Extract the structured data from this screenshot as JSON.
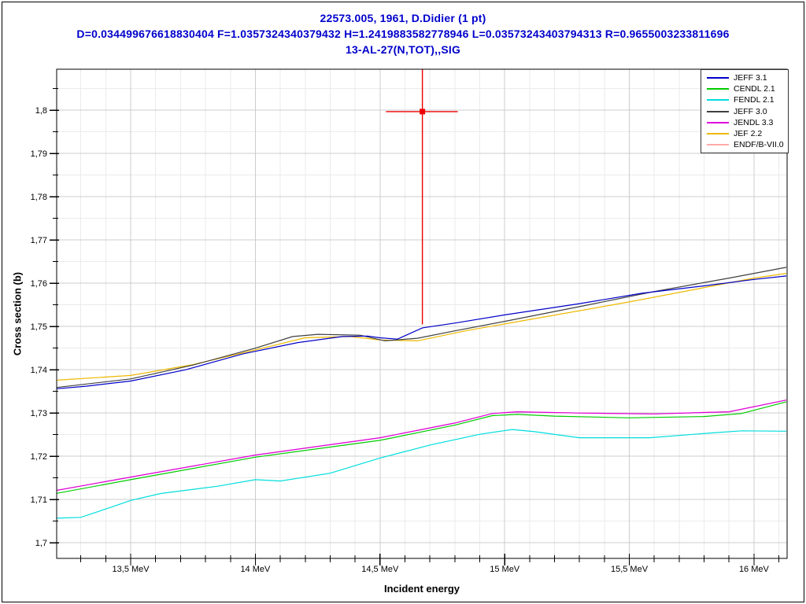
{
  "chart_data": {
    "type": "line",
    "titles": [
      "22573.005, 1961, D.Didier (1 pt)",
      "D=0.034499676618830404 F=1.0357324340379432 H=1.2419883582778946 L=0.03573243403794313 R=0.9655003233811696",
      "13-AL-27(N,TOT),,SIG"
    ],
    "title_color": "#0000cc",
    "xlabel": "Incident energy",
    "ylabel": "Cross section (b)",
    "x_unit": "MeV",
    "xlim": [
      13.203,
      16.133
    ],
    "ylim": [
      1.6964,
      1.8095
    ],
    "x_ticks": [
      {
        "label": "13,5 MeV",
        "value": 13.5
      },
      {
        "label": "14 MeV",
        "value": 14.0
      },
      {
        "label": "14,5 MeV",
        "value": 14.5
      },
      {
        "label": "15 MeV",
        "value": 15.0
      },
      {
        "label": "15,5 MeV",
        "value": 15.5
      },
      {
        "label": "16 MeV",
        "value": 16.0
      }
    ],
    "y_ticks": [
      {
        "label": "1,8",
        "value": 1.8
      },
      {
        "label": "1,79",
        "value": 1.79
      },
      {
        "label": "1,78",
        "value": 1.78
      },
      {
        "label": "1,77",
        "value": 1.77
      },
      {
        "label": "1,76",
        "value": 1.76
      },
      {
        "label": "1,75",
        "value": 1.75
      },
      {
        "label": "1,74",
        "value": 1.74
      },
      {
        "label": "1,73",
        "value": 1.73
      },
      {
        "label": "1,72",
        "value": 1.72
      },
      {
        "label": "1,71",
        "value": 1.71
      },
      {
        "label": "1,7",
        "value": 1.7
      }
    ],
    "x_minor_step": 0.1,
    "y_minor_step": 0.005,
    "grid": {
      "major": "#cccccc",
      "minor": "#ebebeb"
    },
    "axis_color": "#000000",
    "legend": {
      "position": "top-right",
      "entries": [
        "JEFF 3.1",
        "CENDL 2.1",
        "FENDL 2.1",
        "JEFF 3.0",
        "JENDL 3.3",
        "JEF 2.2",
        "ENDF/B-VII.0"
      ]
    },
    "series": [
      {
        "id": "jeff31",
        "name": "JEFF 3.1",
        "color": "#0000c8",
        "points": [
          [
            13.2,
            1.7356
          ],
          [
            13.32,
            1.7362
          ],
          [
            13.5,
            1.7374
          ],
          [
            13.72,
            1.74
          ],
          [
            13.95,
            1.7437
          ],
          [
            14.17,
            1.7463
          ],
          [
            14.35,
            1.7477
          ],
          [
            14.45,
            1.7478
          ],
          [
            14.5,
            1.7474
          ],
          [
            14.57,
            1.7471
          ],
          [
            14.67,
            1.7497
          ],
          [
            14.8,
            1.7508
          ],
          [
            15.0,
            1.7527
          ],
          [
            15.3,
            1.7553
          ],
          [
            15.55,
            1.7577
          ],
          [
            15.8,
            1.7594
          ],
          [
            16.0,
            1.7609
          ],
          [
            16.13,
            1.7617
          ]
        ]
      },
      {
        "id": "cendl21",
        "name": "CENDL 2.1",
        "color": "#00cc00",
        "points": [
          [
            13.2,
            1.7114
          ],
          [
            13.5,
            1.7146
          ],
          [
            14.0,
            1.7198
          ],
          [
            14.5,
            1.7237
          ],
          [
            14.8,
            1.7272
          ],
          [
            14.95,
            1.7294
          ],
          [
            15.05,
            1.7297
          ],
          [
            15.2,
            1.7293
          ],
          [
            15.5,
            1.7289
          ],
          [
            15.8,
            1.7292
          ],
          [
            15.95,
            1.7299
          ],
          [
            16.13,
            1.7326
          ]
        ]
      },
      {
        "id": "fendl21",
        "name": "FENDL 2.1",
        "color": "#00dddd",
        "points": [
          [
            13.2,
            1.7057
          ],
          [
            13.3,
            1.7059
          ],
          [
            13.42,
            1.7082
          ],
          [
            13.5,
            1.7098
          ],
          [
            13.62,
            1.7114
          ],
          [
            13.85,
            1.7131
          ],
          [
            14.0,
            1.7146
          ],
          [
            14.1,
            1.7143
          ],
          [
            14.3,
            1.7161
          ],
          [
            14.5,
            1.7196
          ],
          [
            14.7,
            1.7226
          ],
          [
            14.9,
            1.7251
          ],
          [
            15.03,
            1.7262
          ],
          [
            15.12,
            1.7257
          ],
          [
            15.3,
            1.7243
          ],
          [
            15.58,
            1.7243
          ],
          [
            15.83,
            1.7254
          ],
          [
            15.95,
            1.7259
          ],
          [
            16.13,
            1.7258
          ]
        ]
      },
      {
        "id": "jeff30",
        "name": "JEFF 3.0",
        "color": "#404040",
        "points": [
          [
            13.2,
            1.7359
          ],
          [
            13.5,
            1.7379
          ],
          [
            13.75,
            1.7411
          ],
          [
            14.0,
            1.745
          ],
          [
            14.15,
            1.7477
          ],
          [
            14.25,
            1.7482
          ],
          [
            14.42,
            1.748
          ],
          [
            14.52,
            1.7467
          ],
          [
            14.65,
            1.7473
          ],
          [
            14.8,
            1.749
          ],
          [
            15.0,
            1.7512
          ],
          [
            15.3,
            1.7546
          ],
          [
            15.6,
            1.7581
          ],
          [
            15.9,
            1.7612
          ],
          [
            16.13,
            1.7637
          ]
        ]
      },
      {
        "id": "jendl33",
        "name": "JENDL 3.3",
        "color": "#dd00dd",
        "points": [
          [
            13.2,
            1.7121
          ],
          [
            13.5,
            1.7152
          ],
          [
            14.0,
            1.7203
          ],
          [
            14.5,
            1.7243
          ],
          [
            14.8,
            1.7277
          ],
          [
            14.95,
            1.7299
          ],
          [
            15.05,
            1.7303
          ],
          [
            15.3,
            1.73
          ],
          [
            15.6,
            1.7298
          ],
          [
            15.9,
            1.7303
          ],
          [
            16.13,
            1.733
          ]
        ]
      },
      {
        "id": "jef22",
        "name": "JEF 2.2",
        "color": "#edb800",
        "points": [
          [
            13.2,
            1.7376
          ],
          [
            13.5,
            1.7387
          ],
          [
            13.75,
            1.7412
          ],
          [
            14.0,
            1.7446
          ],
          [
            14.2,
            1.7474
          ],
          [
            14.38,
            1.7477
          ],
          [
            14.5,
            1.7469
          ],
          [
            14.65,
            1.7467
          ],
          [
            14.85,
            1.7491
          ],
          [
            15.0,
            1.7506
          ],
          [
            15.5,
            1.7557
          ],
          [
            16.0,
            1.7612
          ],
          [
            16.13,
            1.7623
          ]
        ]
      },
      {
        "id": "endfb70",
        "name": "ENDF/B-VII.0",
        "color": "#ffaaaa",
        "points": [
          [
            13.2,
            1.7121
          ],
          [
            13.5,
            1.7152
          ],
          [
            14.0,
            1.7203
          ],
          [
            14.5,
            1.7243
          ],
          [
            14.8,
            1.7277
          ],
          [
            14.95,
            1.7299
          ],
          [
            15.05,
            1.7303
          ],
          [
            15.3,
            1.73
          ],
          [
            15.6,
            1.7298
          ],
          [
            15.9,
            1.7303
          ],
          [
            16.13,
            1.733
          ]
        ]
      }
    ],
    "exp_point": {
      "label": "22573.005, 1961, D.Didier",
      "color": "#ee0000",
      "x": 14.67,
      "y": 1.7997,
      "x_lo": 14.524,
      "x_hi": 14.812,
      "y_lo": 1.7505,
      "y_hi": 1.85
    }
  }
}
